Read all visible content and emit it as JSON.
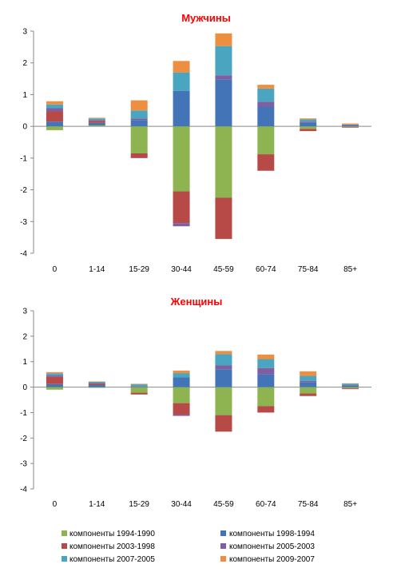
{
  "chart_data": [
    {
      "type": "bar",
      "stacked": true,
      "title": "Мужчины",
      "title_color": "#ff0000",
      "categories": [
        "0",
        "1-14",
        "15-29",
        "30-44",
        "45-59",
        "60-74",
        "75-84",
        "85+"
      ],
      "ylim": [
        -4,
        3
      ],
      "yticks": [
        "-4",
        "-3",
        "-2",
        "-1",
        "0",
        "1",
        "2",
        "3"
      ],
      "grid": false,
      "series": [
        {
          "name": "компоненты 1994-1990",
          "color": "#8db451",
          "values": [
            -0.12,
            0.03,
            -0.85,
            -2.05,
            -2.25,
            -0.88,
            -0.08,
            -0.02
          ]
        },
        {
          "name": "компоненты 1998-1994",
          "color": "#4474b8",
          "values": [
            0.15,
            0.08,
            0.2,
            1.12,
            1.48,
            0.62,
            0.12,
            0.03
          ]
        },
        {
          "name": "компоненты 2003-1998",
          "color": "#b74a47",
          "values": [
            0.32,
            0.06,
            -0.15,
            -1.0,
            -1.3,
            -0.52,
            -0.07,
            -0.02
          ]
        },
        {
          "name": "компоненты 2005-2003",
          "color": "#7f5ea2",
          "values": [
            0.1,
            0.03,
            0.05,
            -0.1,
            0.13,
            0.15,
            0.03,
            0.01
          ]
        },
        {
          "name": "компоненты 2007-2005",
          "color": "#4aa5c1",
          "values": [
            0.12,
            0.05,
            0.25,
            0.58,
            0.92,
            0.42,
            0.07,
            0.02
          ]
        },
        {
          "name": "компоненты 2009-2007",
          "color": "#ec8f40",
          "values": [
            0.1,
            0.02,
            0.32,
            0.36,
            0.4,
            0.12,
            0.03,
            0.03
          ]
        }
      ]
    },
    {
      "type": "bar",
      "stacked": true,
      "title": "Женщины",
      "title_color": "#ff0000",
      "categories": [
        "0",
        "1-14",
        "15-29",
        "30-44",
        "45-59",
        "60-74",
        "75-84",
        "85+"
      ],
      "ylim": [
        -4,
        3
      ],
      "yticks": [
        "-4",
        "-3",
        "-2",
        "-1",
        "0",
        "1",
        "2",
        "3"
      ],
      "grid": false,
      "series": [
        {
          "name": "компоненты 1994-1990",
          "color": "#8db451",
          "values": [
            -0.1,
            -0.03,
            -0.22,
            -0.63,
            -1.1,
            -0.75,
            -0.25,
            -0.05
          ]
        },
        {
          "name": "компоненты 1998-1994",
          "color": "#4474b8",
          "values": [
            0.12,
            0.08,
            0.02,
            0.38,
            0.7,
            0.5,
            0.18,
            0.06
          ]
        },
        {
          "name": "компоненты 2003-1998",
          "color": "#b74a47",
          "values": [
            0.28,
            0.05,
            -0.07,
            -0.45,
            -0.65,
            -0.25,
            -0.1,
            -0.03
          ]
        },
        {
          "name": "компоненты 2005-2003",
          "color": "#7f5ea2",
          "values": [
            0.06,
            0.03,
            0.01,
            -0.05,
            0.15,
            0.25,
            0.06,
            0.02
          ]
        },
        {
          "name": "компоненты 2007-2005",
          "color": "#4aa5c1",
          "values": [
            0.08,
            0.05,
            0.08,
            0.17,
            0.45,
            0.35,
            0.2,
            0.06
          ]
        },
        {
          "name": "компоненты 2009-2007",
          "color": "#ec8f40",
          "values": [
            0.05,
            0.01,
            0.02,
            0.1,
            0.12,
            0.18,
            0.18,
            0.01
          ]
        }
      ]
    }
  ],
  "legend": {
    "placement": "bottom",
    "items": [
      {
        "label": "компоненты 1994-1990",
        "color": "#8db451"
      },
      {
        "label": "компоненты 1998-1994",
        "color": "#4474b8"
      },
      {
        "label": "компоненты 2003-1998",
        "color": "#b74a47"
      },
      {
        "label": "компоненты 2005-2003",
        "color": "#7f5ea2"
      },
      {
        "label": "компоненты 2007-2005",
        "color": "#4aa5c1"
      },
      {
        "label": "компоненты 2009-2007",
        "color": "#ec8f40"
      }
    ]
  }
}
